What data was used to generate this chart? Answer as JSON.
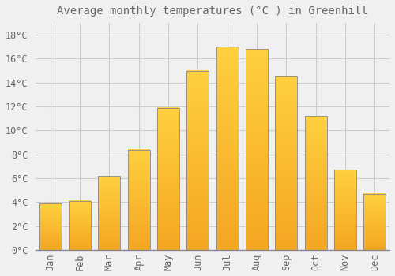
{
  "title": "Average monthly temperatures (°C ) in Greenhill",
  "months": [
    "Jan",
    "Feb",
    "Mar",
    "Apr",
    "May",
    "Jun",
    "Jul",
    "Aug",
    "Sep",
    "Oct",
    "Nov",
    "Dec"
  ],
  "values": [
    3.9,
    4.1,
    6.2,
    8.4,
    11.9,
    15.0,
    17.0,
    16.8,
    14.5,
    11.2,
    6.7,
    4.7
  ],
  "bar_color_bottom": "#F5A623",
  "bar_color_top": "#FFD040",
  "bar_edge_color": "#888888",
  "background_color": "#f0f0f0",
  "grid_color": "#cccccc",
  "text_color": "#666666",
  "ylim": [
    0,
    19
  ],
  "yticks": [
    0,
    2,
    4,
    6,
    8,
    10,
    12,
    14,
    16,
    18
  ],
  "title_fontsize": 10,
  "tick_fontsize": 8.5
}
